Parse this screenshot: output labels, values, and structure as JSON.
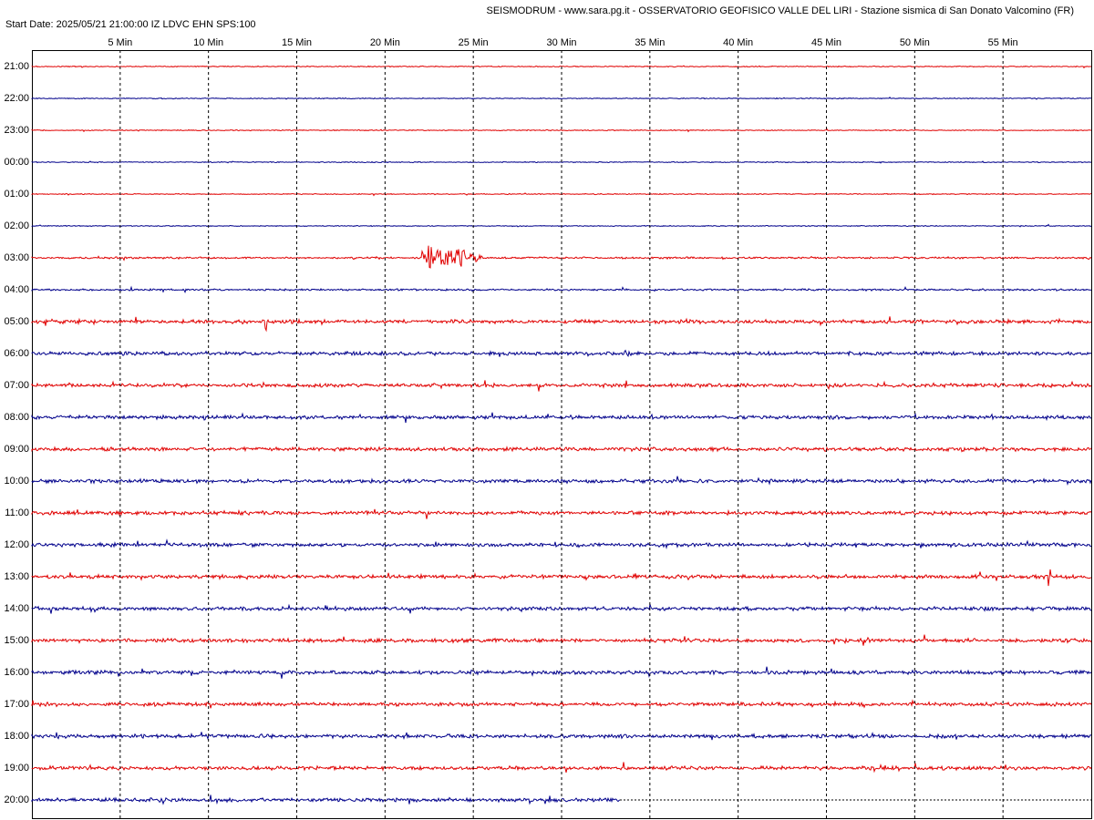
{
  "header": {
    "title": "SEISMODRUM - www.sara.pg.it - OSSERVATORIO GEOFISICO VALLE DEL LIRI - Stazione sismica di San Donato Valcomino (FR)",
    "start": "Start Date: 2025/05/21 21:00:00 IZ LDVC EHN SPS:100"
  },
  "minute_labels": [
    "5 Min",
    "10 Min",
    "15 Min",
    "20 Min",
    "25 Min",
    "30 Min",
    "35 Min",
    "40 Min",
    "45 Min",
    "50 Min",
    "55 Min"
  ],
  "hour_labels": [
    "21:00",
    "22:00",
    "23:00",
    "00:00",
    "01:00",
    "02:00",
    "03:00",
    "04:00",
    "05:00",
    "06:00",
    "07:00",
    "08:00",
    "09:00",
    "10:00",
    "11:00",
    "12:00",
    "13:00",
    "14:00",
    "15:00",
    "16:00",
    "17:00",
    "18:00",
    "19:00",
    "20:00"
  ]
}
